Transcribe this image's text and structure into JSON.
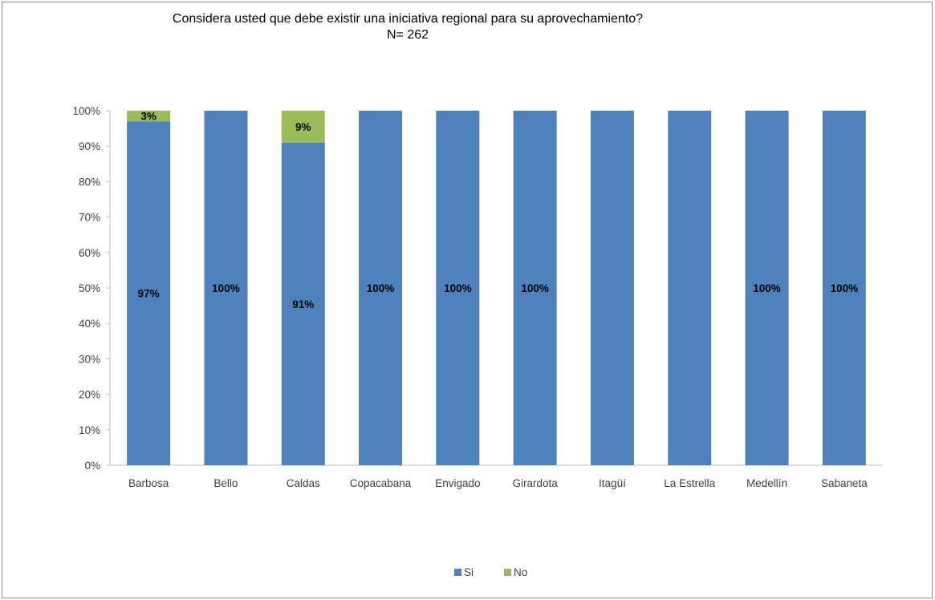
{
  "chart_data": {
    "type": "bar",
    "stacked": true,
    "title": "Considera usted que debe existir una iniciativa regional para su aprovechamiento?",
    "subtitle": "N= 262",
    "categories": [
      "Barbosa",
      "Bello",
      "Caldas",
      "Copacabana",
      "Envigado",
      "Girardota",
      "Itagüí",
      "La Estrella",
      "Medellín",
      "Sabaneta"
    ],
    "series": [
      {
        "name": "Si",
        "color": "#4f81bd",
        "values": [
          97,
          100,
          91,
          100,
          100,
          100,
          100,
          100,
          100,
          100
        ],
        "labels": [
          "97%",
          "100%",
          "91%",
          "100%",
          "100%",
          "100%",
          "",
          "",
          "100%",
          "100%"
        ]
      },
      {
        "name": "No",
        "color": "#9bbb59",
        "values": [
          3,
          0,
          9,
          0,
          0,
          0,
          0,
          0,
          0,
          0
        ],
        "labels": [
          "3%",
          "",
          "9%",
          "",
          "",
          "",
          "",
          "",
          "",
          ""
        ]
      }
    ],
    "ylim": [
      0,
      100
    ],
    "yticks": [
      "0%",
      "10%",
      "20%",
      "30%",
      "40%",
      "50%",
      "60%",
      "70%",
      "80%",
      "90%",
      "100%"
    ],
    "grid": false,
    "legend": "bottom"
  }
}
